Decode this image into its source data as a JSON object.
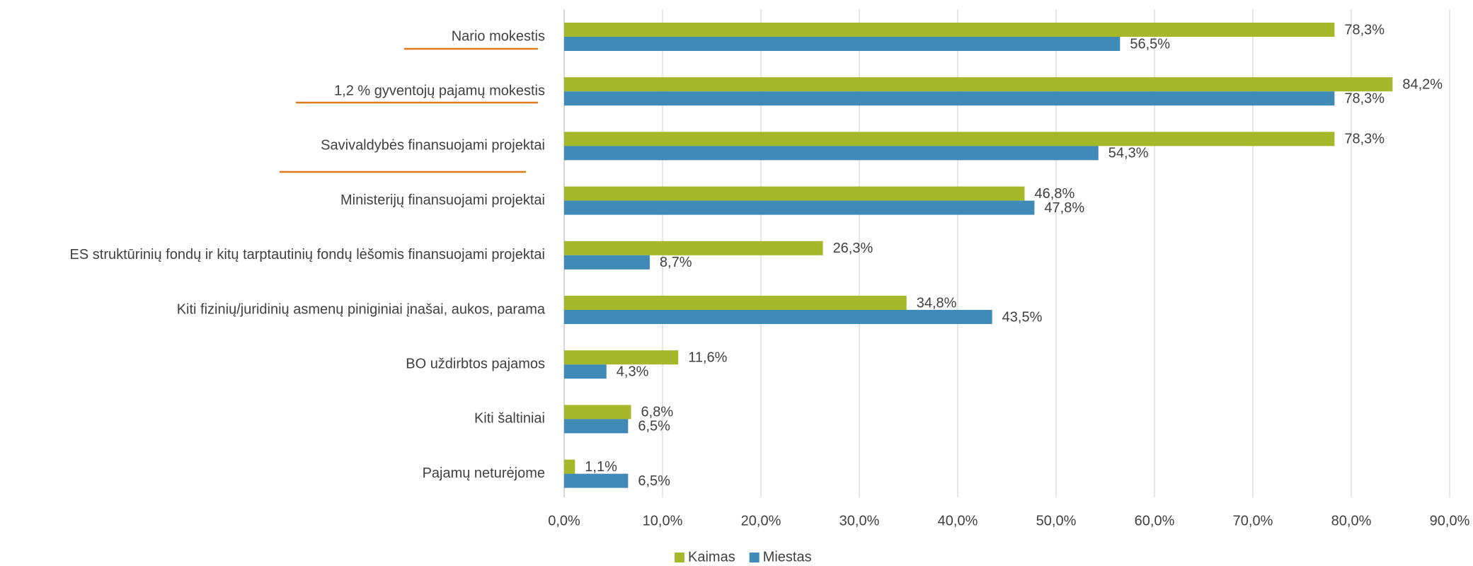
{
  "chart_data": {
    "type": "hbar",
    "categories": [
      "Nario mokestis",
      "1,2 % gyventojų pajamų mokestis",
      "Savivaldybės finansuojami projektai",
      "Ministerijų finansuojami projektai",
      "ES struktūrinių fondų ir kitų tarptautinių fondų lėšomis finansuojami projektai",
      "Kiti fizinių/juridinių asmenų piniginiai įnašai, aukos, parama",
      "BO uždirbtos pajamos",
      "Kiti šaltiniai",
      "Pajamų neturėjome"
    ],
    "series": [
      {
        "name": "Kaimas",
        "color": "#a5b82a",
        "values": [
          78.3,
          84.2,
          78.3,
          46.8,
          26.3,
          34.8,
          11.6,
          6.8,
          1.1
        ],
        "value_labels": [
          "78,3%",
          "84,2%",
          "78,3%",
          "46,8%",
          "26,3%",
          "34,8%",
          "11,6%",
          "6,8%",
          "1,1%"
        ]
      },
      {
        "name": "Miestas",
        "color": "#3f8ab7",
        "values": [
          56.5,
          78.3,
          54.3,
          47.8,
          8.7,
          43.5,
          4.3,
          6.5,
          6.5
        ],
        "value_labels": [
          "56,5%",
          "78,3%",
          "54,3%",
          "47,8%",
          "8,7%",
          "43,5%",
          "4,3%",
          "6,5%",
          "6,5%"
        ]
      }
    ],
    "xlim": [
      0,
      90
    ],
    "xticks": [
      {
        "value": 0,
        "label": "0,0%"
      },
      {
        "value": 10,
        "label": "10,0%"
      },
      {
        "value": 20,
        "label": "20,0%"
      },
      {
        "value": 30,
        "label": "30,0%"
      },
      {
        "value": 40,
        "label": "40,0%"
      },
      {
        "value": 50,
        "label": "50,0%"
      },
      {
        "value": 60,
        "label": "60,0%"
      },
      {
        "value": 70,
        "label": "70,0%"
      },
      {
        "value": 80,
        "label": "80,0%"
      },
      {
        "value": 90,
        "label": "90,0%"
      }
    ],
    "grid": true,
    "legend": "bottom"
  }
}
